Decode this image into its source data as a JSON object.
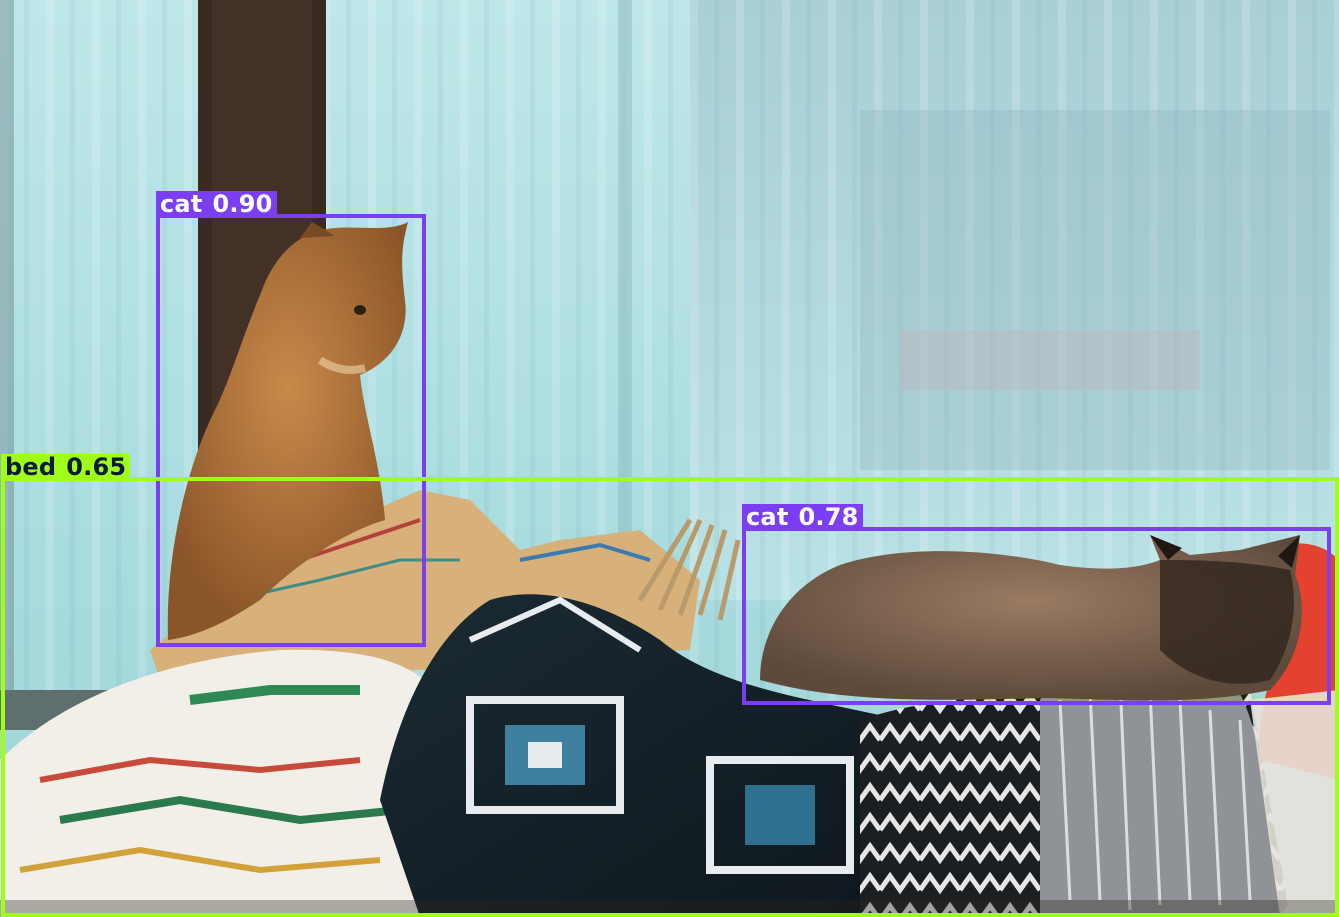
{
  "detections": [
    {
      "label": "cat",
      "score": "0.90",
      "color": "#7b3ef2",
      "text_color": "#ffffff"
    },
    {
      "label": "bed",
      "score": "0.65",
      "color": "#9fff1a",
      "text_color": "#0a1a3a"
    },
    {
      "label": "cat",
      "score": "0.78",
      "color": "#7b3ef2",
      "text_color": "#ffffff"
    }
  ]
}
